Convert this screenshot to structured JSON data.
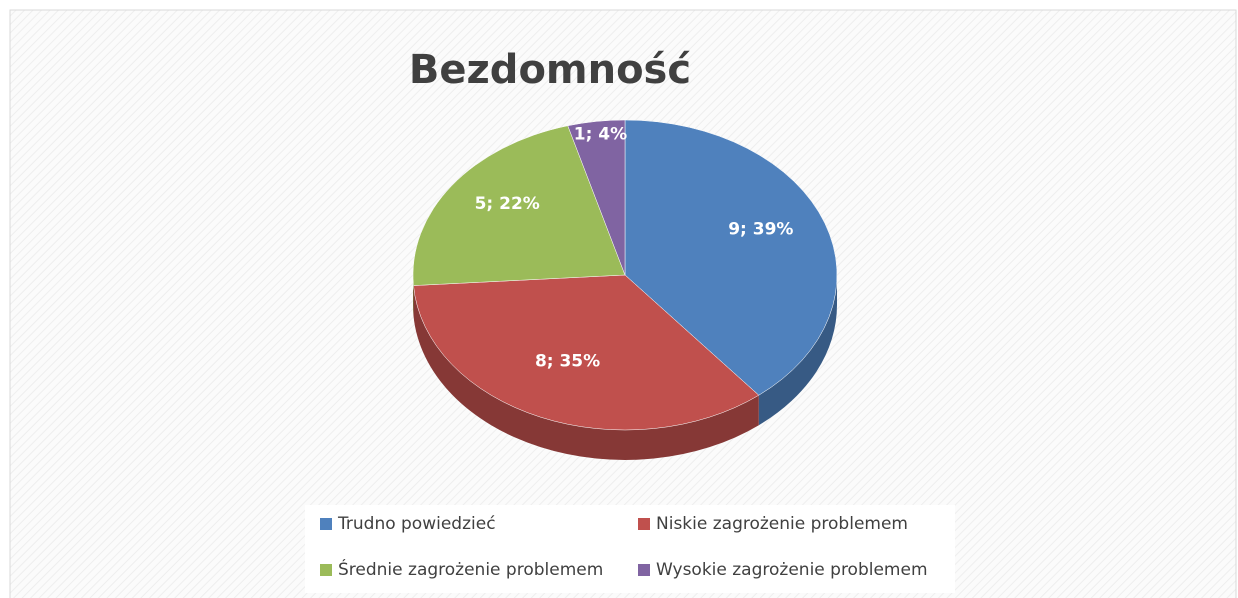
{
  "chart_data": {
    "type": "pie",
    "title": "Bezdomność",
    "categories": [
      "Trudno powiedzieć",
      "Niskie zagrożenie problemem",
      "Średnie zagrożenie problemem",
      "Wysokie zagrożenie problemem"
    ],
    "values": [
      9,
      8,
      5,
      1
    ],
    "value_labels": [
      "9; 39%",
      "8; 35%",
      "5; 22%",
      "1; 4%"
    ],
    "colors": [
      "#4f81bd",
      "#c0504d",
      "#9bbb59",
      "#8064a2"
    ],
    "legend": "bottom"
  }
}
